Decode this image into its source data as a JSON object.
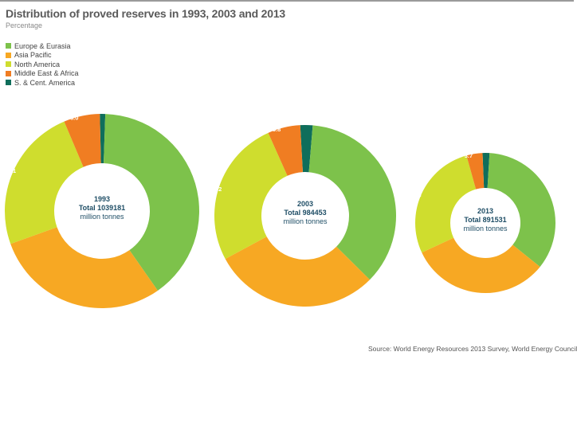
{
  "chart_data": {
    "type": "pie",
    "variant": "donut",
    "title": "Distribution of proved reserves in 1993, 2003 and 2013",
    "subtitle": "Percentage",
    "legend": [
      {
        "name": "Europe & Eurasia",
        "color": "#7dc24b"
      },
      {
        "name": "Asia Pacific",
        "color": "#f7a823"
      },
      {
        "name": "North America",
        "color": "#cfdd2e"
      },
      {
        "name": "Middle East & Africa",
        "color": "#f07d22"
      },
      {
        "name": "S. & Cent. America",
        "color": "#0f6e5b"
      }
    ],
    "charts": [
      {
        "year": "1993",
        "total_label": "Total 1039181",
        "unit": "million tonnes",
        "slices": [
          {
            "series": "S. & Cent. America",
            "value": 0.9,
            "label": "0.9"
          },
          {
            "series": "Europe & Eurasia",
            "value": 39.7,
            "label": "39.7"
          },
          {
            "series": "Asia Pacific",
            "value": 29.2,
            "label": "29.2"
          },
          {
            "series": "North America",
            "value": 24.1,
            "label": "24.1"
          },
          {
            "series": "Middle East & Africa",
            "value": 6.0,
            "label": "6.0"
          }
        ]
      },
      {
        "year": "2003",
        "total_label": "Total 984453",
        "unit": "million tonnes",
        "slices": [
          {
            "series": "S. & Cent. America",
            "value": 2.2,
            "label": "2.2"
          },
          {
            "series": "Europe & Eurasia",
            "value": 36.1,
            "label": "36.1"
          },
          {
            "series": "Asia Pacific",
            "value": 29.7,
            "label": "29.7"
          },
          {
            "series": "North America",
            "value": 26.2,
            "label": "26.2"
          },
          {
            "series": "Middle East & Africa",
            "value": 5.8,
            "label": "5.8"
          }
        ]
      },
      {
        "year": "2013",
        "total_label": "Total 891531",
        "unit": "million tonnes",
        "slices": [
          {
            "series": "S. & Cent. America",
            "value": 1.6,
            "label": "1.6"
          },
          {
            "series": "Europe & Eurasia",
            "value": 34.8,
            "label": "34.8"
          },
          {
            "series": "Asia Pacific",
            "value": 32.3,
            "label": "32.3"
          },
          {
            "series": "North America",
            "value": 27.6,
            "label": "27.6"
          },
          {
            "series": "Middle East & Africa",
            "value": 3.7,
            "label": "3.7"
          }
        ]
      }
    ]
  },
  "source": "Source: World Energy Resources 2013 Survey, World Energy Council"
}
